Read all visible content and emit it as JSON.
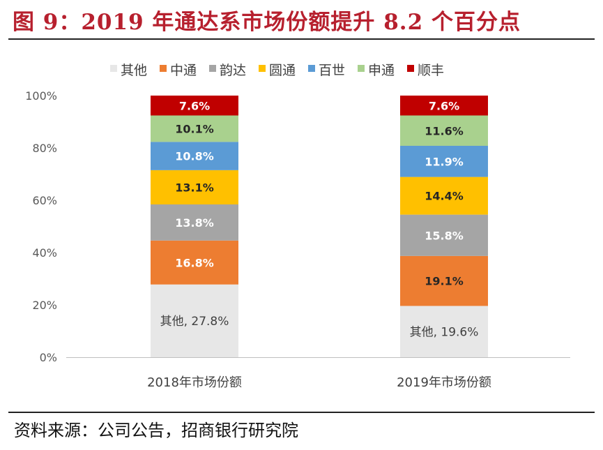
{
  "title": "图 9：2019 年通达系市场份额提升 8.2 个百分点",
  "source": "资料来源：公司公告，招商银行研究院",
  "colors": {
    "title": "#b7202e",
    "其他": "#e7e7e7",
    "中通": "#ed7d31",
    "韵达": "#a5a5a5",
    "圆通": "#ffc000",
    "百世": "#5b9bd5",
    "申通": "#a9d18e",
    "顺丰": "#c00000"
  },
  "chart_data": {
    "type": "bar",
    "stacked": true,
    "percent": true,
    "categories": [
      "2018年市场份额",
      "2019年市场份额"
    ],
    "legend": [
      "其他",
      "中通",
      "韵达",
      "圆通",
      "百世",
      "申通",
      "顺丰"
    ],
    "legend_position": "top",
    "series": [
      {
        "name": "其他",
        "values": [
          27.8,
          19.6
        ],
        "labels": [
          "其他, 27.8%",
          "其他, 19.6%"
        ]
      },
      {
        "name": "中通",
        "values": [
          16.8,
          19.1
        ],
        "labels": [
          "16.8%",
          "19.1%"
        ]
      },
      {
        "name": "韵达",
        "values": [
          13.8,
          15.8
        ],
        "labels": [
          "13.8%",
          "15.8%"
        ]
      },
      {
        "name": "圆通",
        "values": [
          13.1,
          14.4
        ],
        "labels": [
          "13.1%",
          "14.4%"
        ]
      },
      {
        "name": "百世",
        "values": [
          10.8,
          11.9
        ],
        "labels": [
          "10.8%",
          "11.9%"
        ]
      },
      {
        "name": "申通",
        "values": [
          10.1,
          11.6
        ],
        "labels": [
          "10.1%",
          "11.6%"
        ]
      },
      {
        "name": "顺丰",
        "values": [
          7.6,
          7.6
        ],
        "labels": [
          "7.6%",
          "7.6%"
        ]
      }
    ],
    "yticks": [
      "0%",
      "20%",
      "40%",
      "60%",
      "80%",
      "100%"
    ],
    "ylim": [
      0,
      100
    ],
    "grid": false
  }
}
